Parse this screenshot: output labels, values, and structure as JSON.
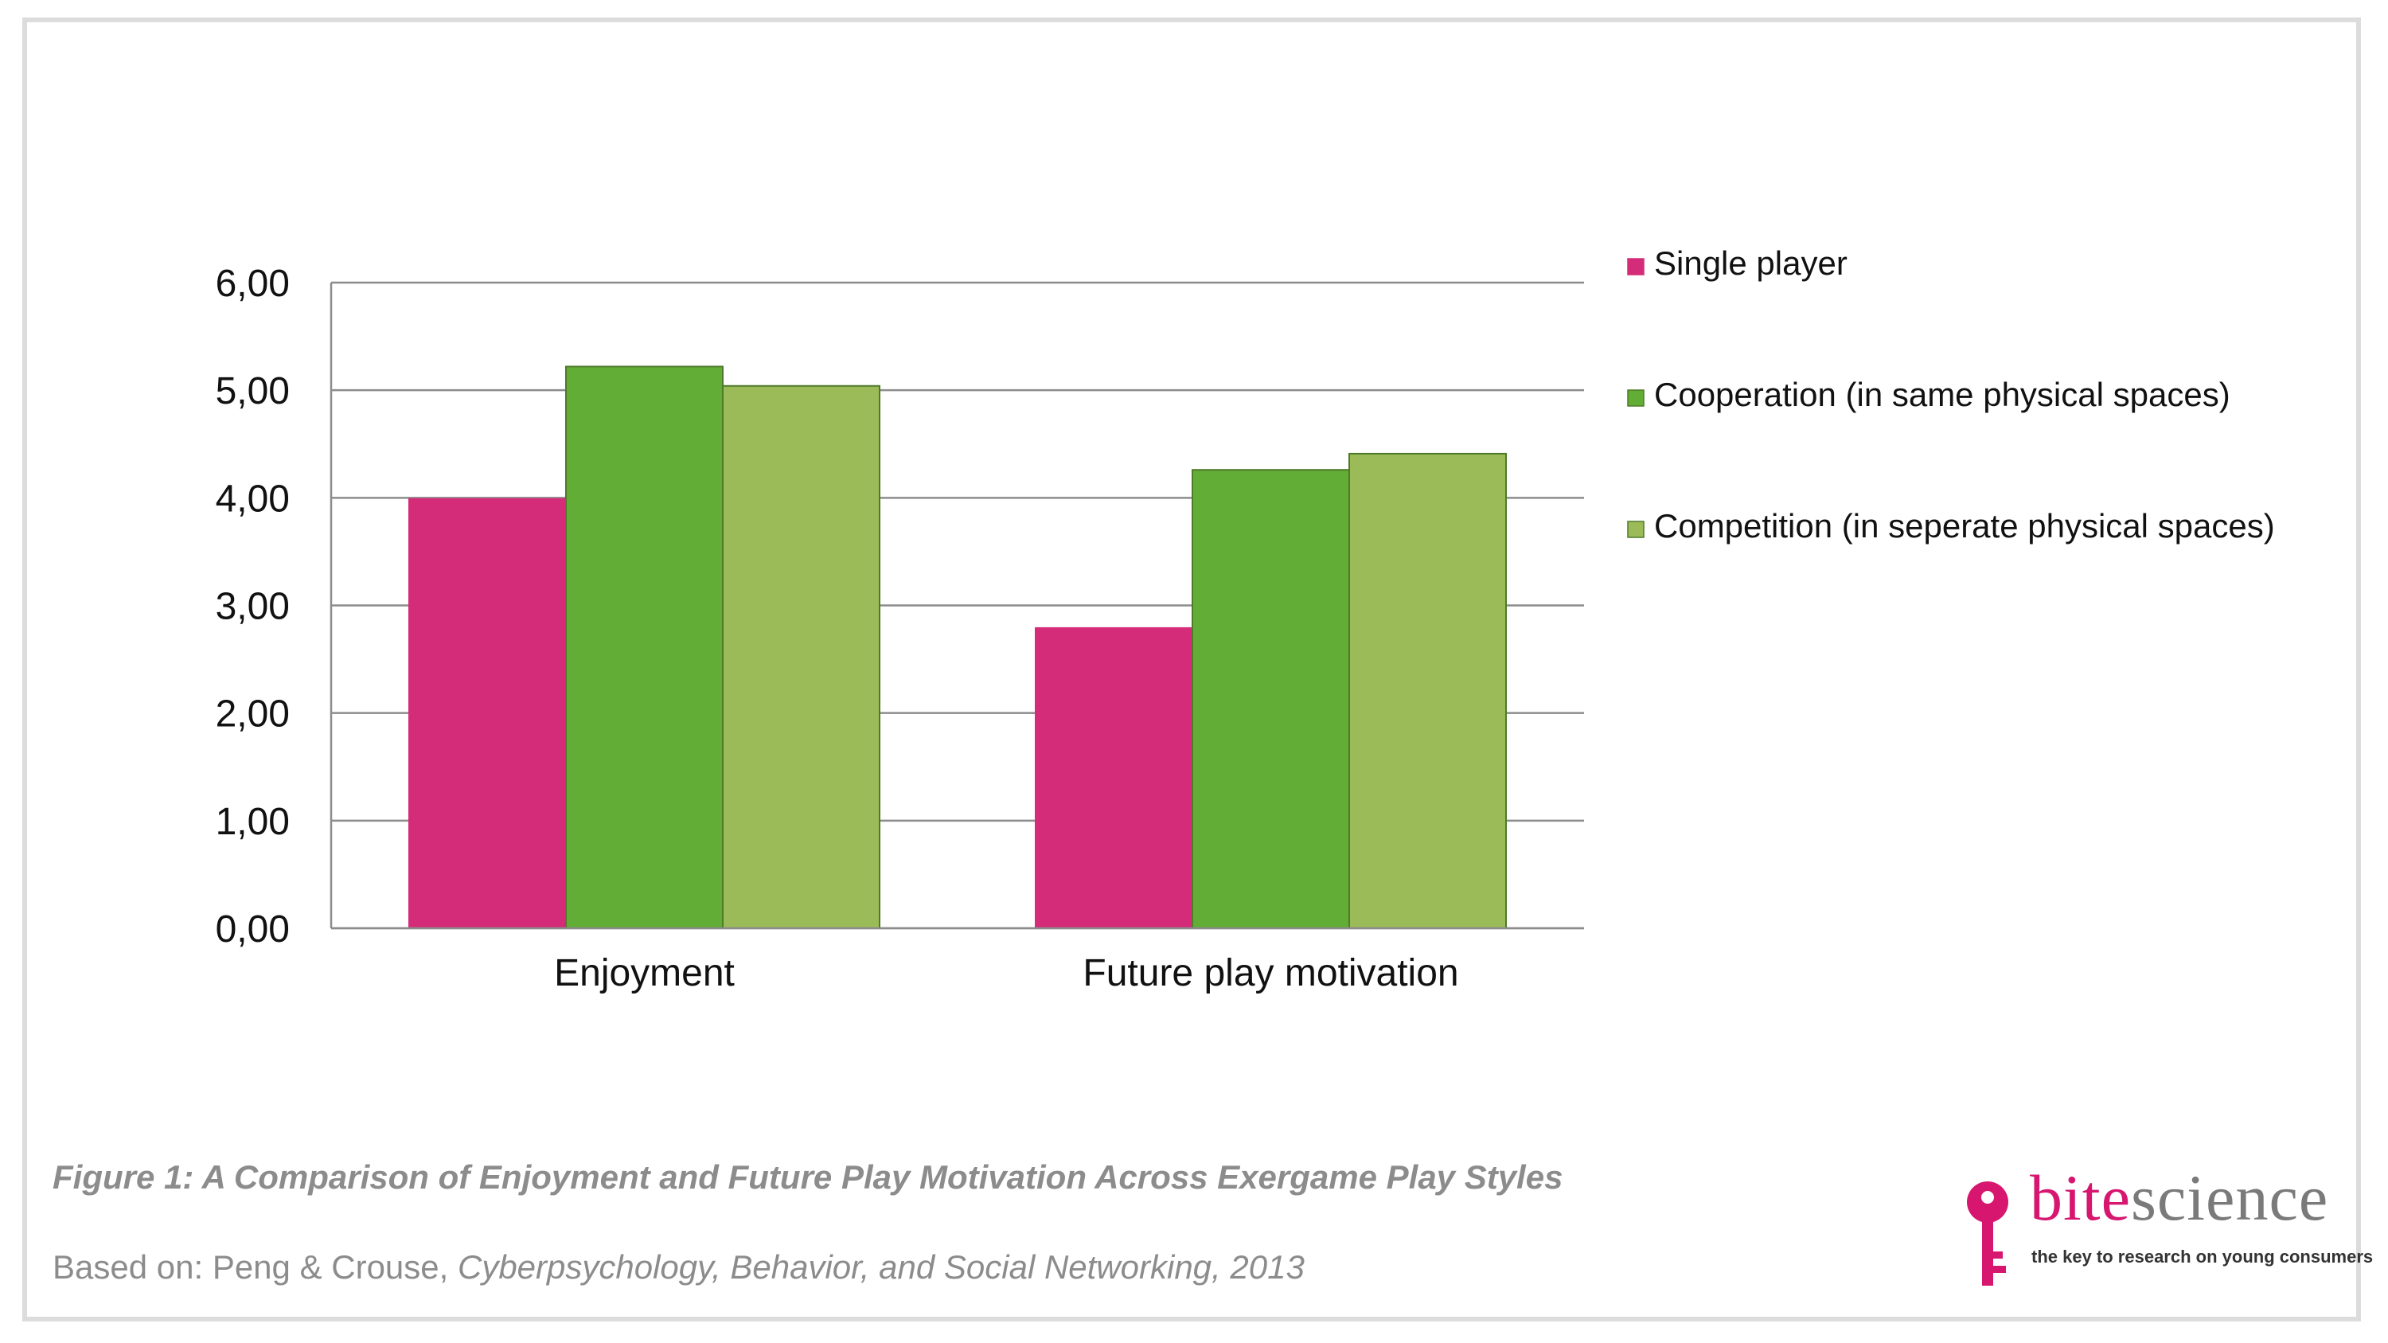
{
  "chart_data": {
    "type": "bar",
    "categories": [
      "Enjoyment",
      "Future play motivation"
    ],
    "series": [
      {
        "name": "Single player",
        "values": [
          3.99,
          2.79
        ],
        "color": "#d42c78"
      },
      {
        "name": "Cooperation (in same physical spaces)",
        "values": [
          5.22,
          4.26
        ],
        "color": "#62ad35"
      },
      {
        "name": "Competition (in seperate physical spaces)",
        "values": [
          5.04,
          4.41
        ],
        "color": "#9bbb59"
      }
    ],
    "ylim": [
      0,
      6
    ],
    "yticks": [
      "0,00",
      "1,00",
      "2,00",
      "3,00",
      "4,00",
      "5,00",
      "6,00"
    ],
    "grid": true,
    "legend_position": "right",
    "xlabel": "",
    "ylabel": ""
  },
  "caption": {
    "title": "Figure 1: A Comparison of Enjoyment and Future Play Motivation Across Exergame Play Styles",
    "source_prefix": "Based on: Peng & Crouse, ",
    "source_journal": "Cyberpsychology, Behavior, and Social Networking, 2013"
  },
  "brand": {
    "name_part1": "bite",
    "name_part2": "science",
    "tagline": "the key to research on young consumers",
    "icon": "key-icon",
    "color": "#d6166f"
  }
}
